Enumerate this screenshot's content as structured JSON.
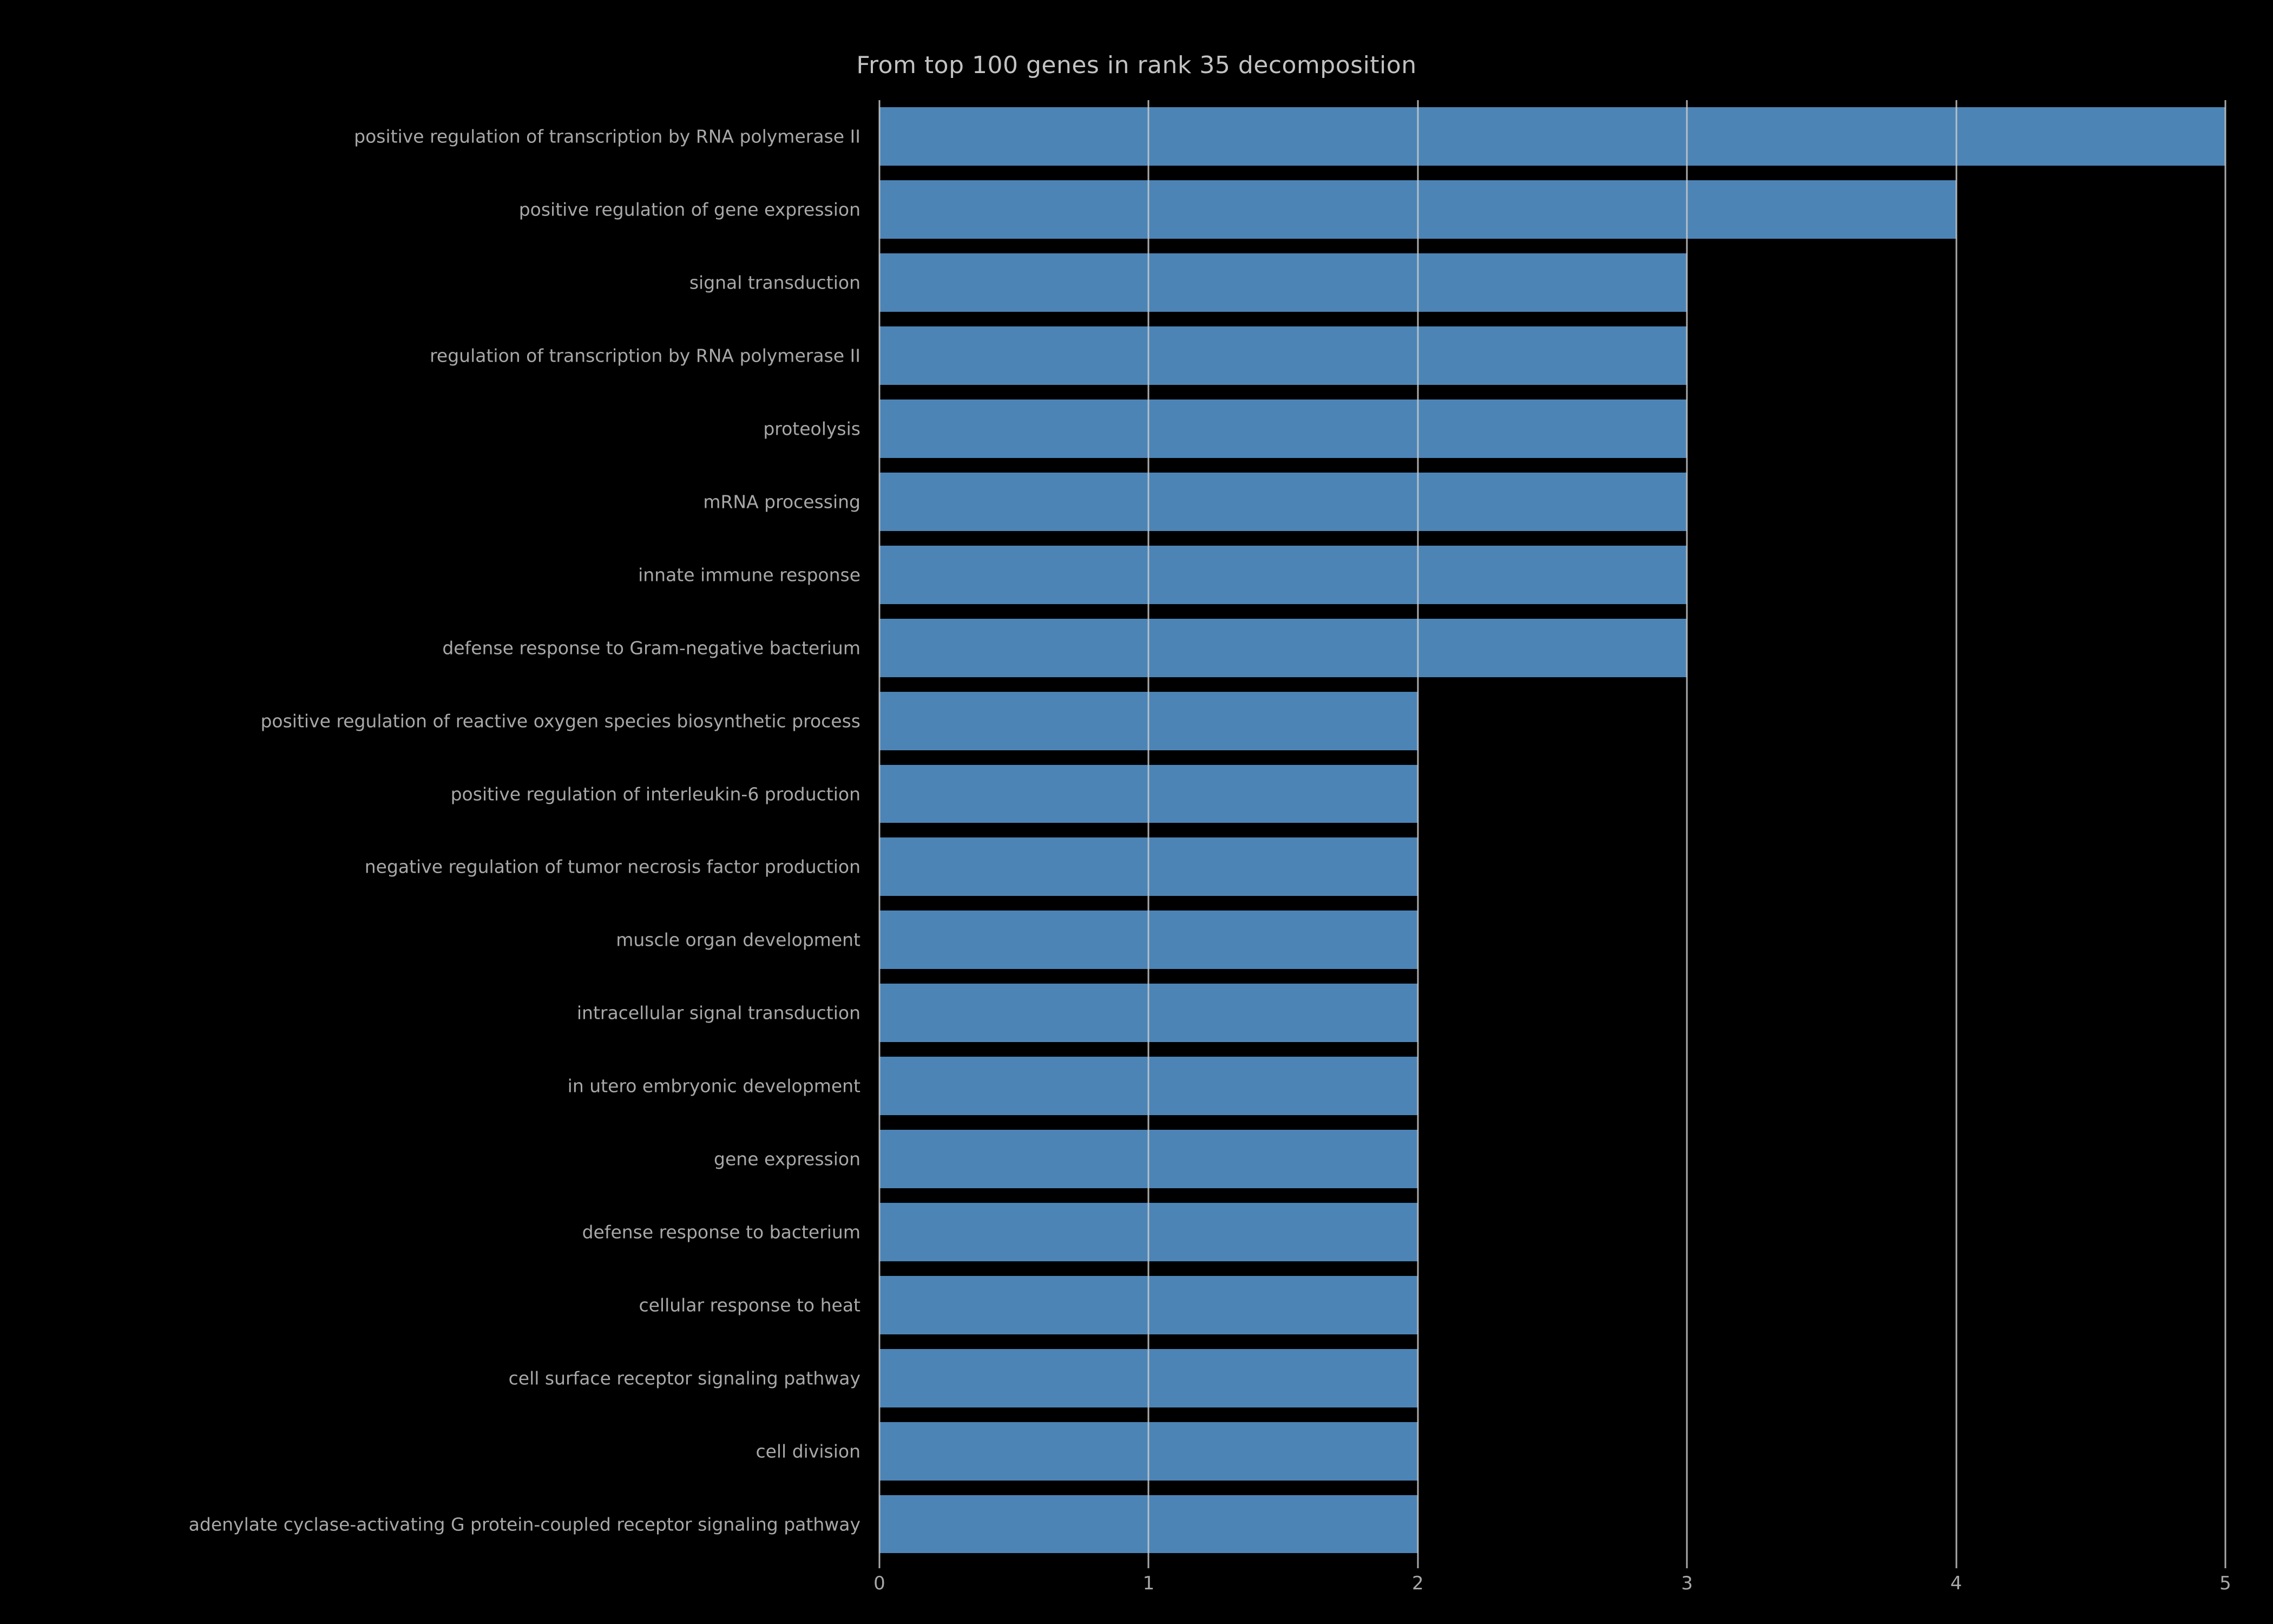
{
  "chart_data": {
    "type": "bar",
    "orientation": "horizontal",
    "title": "From top 100 genes in rank 35 decomposition",
    "categories": [
      "positive regulation of transcription by RNA polymerase II",
      "positive regulation of gene expression",
      "signal transduction",
      "regulation of transcription by RNA polymerase II",
      "proteolysis",
      "mRNA processing",
      "innate immune response",
      "defense response to Gram-negative bacterium",
      "positive regulation of reactive oxygen species biosynthetic process",
      "positive regulation of interleukin-6 production",
      "negative regulation of tumor necrosis factor production",
      "muscle organ development",
      "intracellular signal transduction",
      "in utero embryonic development",
      "gene expression",
      "defense response to bacterium",
      "cellular response to heat",
      "cell surface receptor signaling pathway",
      "cell division",
      "adenylate cyclase-activating G protein-coupled receptor signaling pathway"
    ],
    "values": [
      5,
      4,
      3,
      3,
      3,
      3,
      3,
      3,
      2,
      2,
      2,
      2,
      2,
      2,
      2,
      2,
      2,
      2,
      2,
      2
    ],
    "xlabel": "",
    "ylabel": "",
    "xlim": [
      0,
      5
    ],
    "xticks": [
      "0",
      "1",
      "2",
      "3",
      "4",
      "5"
    ],
    "grid": true,
    "legend": false,
    "bar_color": "#4c84b6",
    "background_color": "#000000",
    "text_color": "#a8a8a8",
    "title_color": "#c2c2c2",
    "grid_color": "#c8c8c8"
  }
}
